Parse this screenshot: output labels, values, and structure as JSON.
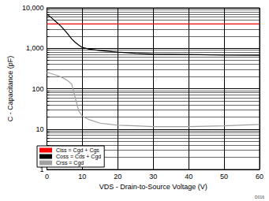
{
  "chart_data": {
    "type": "line",
    "x_label": "VDS - Drain-to-Source Voltage (V)",
    "y_label": "C - Capacitance (pF)",
    "annotations": [
      "D016"
    ],
    "x": [
      0,
      1,
      2,
      3,
      4,
      5,
      6,
      7,
      8,
      9,
      10,
      12,
      15,
      20,
      25,
      30,
      40,
      50,
      60
    ],
    "series": [
      {
        "name": "Ciss = Cgd + Cgs",
        "color": "#ff0000",
        "values": [
          4000,
          4000,
          4000,
          4000,
          4000,
          4000,
          4000,
          4000,
          4000,
          4000,
          4000,
          4000,
          4000,
          4000,
          4000,
          4000,
          4000,
          4000,
          4000
        ]
      },
      {
        "name": "Coss = Cds + Cgd",
        "color": "#000000",
        "values": [
          7000,
          6000,
          5000,
          4200,
          3500,
          2800,
          2200,
          1700,
          1400,
          1200,
          1050,
          950,
          880,
          800,
          750,
          720,
          700,
          680,
          670
        ]
      },
      {
        "name": "Crss = Cgd",
        "color": "#a0a0a0",
        "values": [
          250,
          240,
          225,
          210,
          195,
          175,
          155,
          130,
          60,
          28,
          21,
          17,
          14,
          12.5,
          12,
          11.5,
          11.5,
          12,
          13
        ]
      }
    ],
    "xlim": [
      0,
      60
    ],
    "xticks": [
      0,
      10,
      20,
      30,
      40,
      50,
      60
    ],
    "ylim": [
      1,
      10000
    ],
    "yticks": [
      1,
      10,
      100,
      1000,
      10000
    ],
    "log": "y",
    "grid": true,
    "legend": "lower left"
  }
}
